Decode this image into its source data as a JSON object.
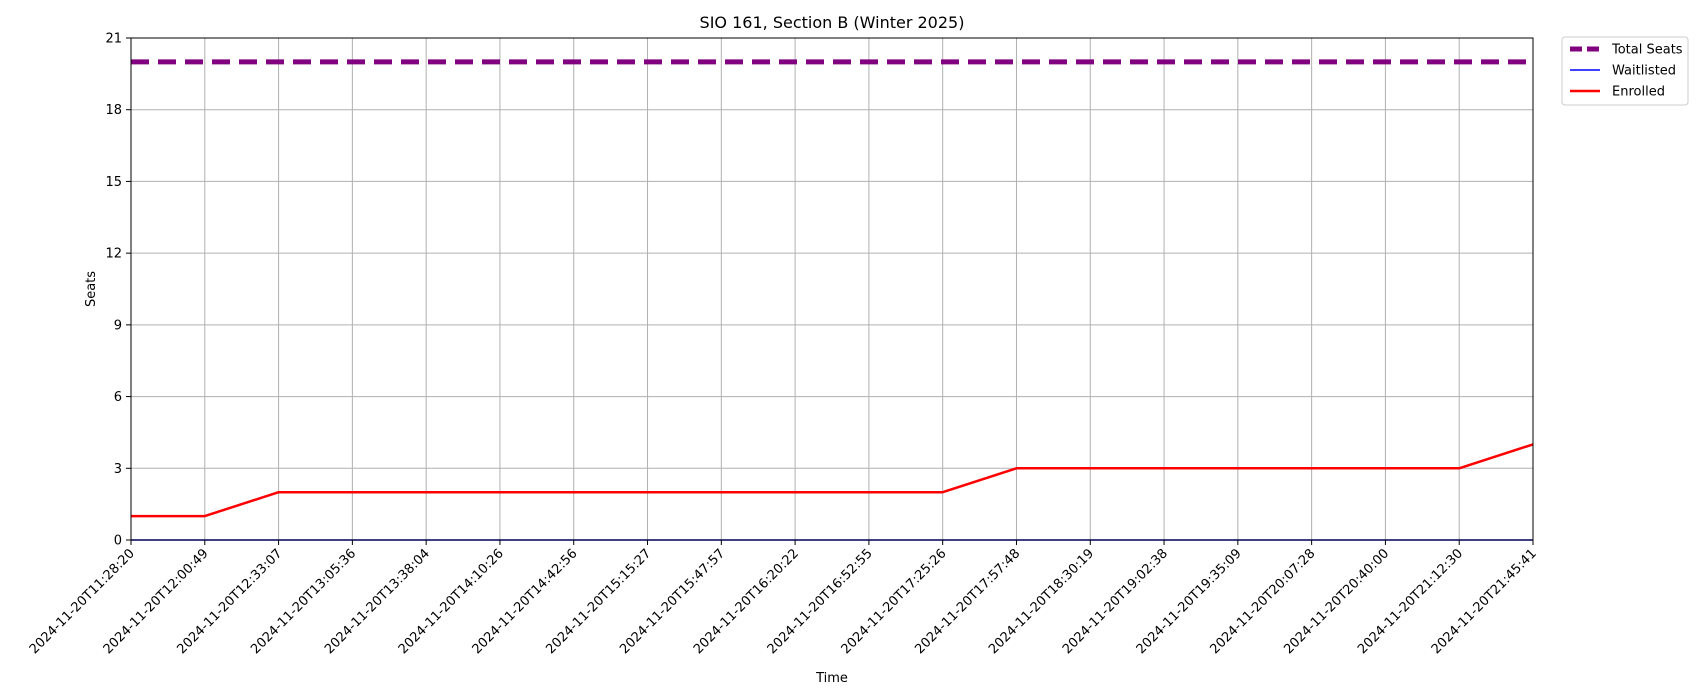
{
  "chart_data": {
    "type": "line",
    "title": "SIO 161, Section B (Winter 2025)",
    "xlabel": "Time",
    "ylabel": "Seats",
    "ylim": [
      0,
      21
    ],
    "yticks": [
      0,
      3,
      6,
      9,
      12,
      15,
      18,
      21
    ],
    "grid": true,
    "legend_position": "outside top-right",
    "x": [
      "2024-11-20T11:28:20",
      "2024-11-20T12:00:49",
      "2024-11-20T12:33:07",
      "2024-11-20T13:05:36",
      "2024-11-20T13:38:04",
      "2024-11-20T14:10:26",
      "2024-11-20T14:42:56",
      "2024-11-20T15:15:27",
      "2024-11-20T15:47:57",
      "2024-11-20T16:20:22",
      "2024-11-20T16:52:55",
      "2024-11-20T17:25:26",
      "2024-11-20T17:57:48",
      "2024-11-20T18:30:19",
      "2024-11-20T19:02:38",
      "2024-11-20T19:35:09",
      "2024-11-20T20:07:28",
      "2024-11-20T20:40:00",
      "2024-11-20T21:12:30",
      "2024-11-20T21:45:41"
    ],
    "series": [
      {
        "name": "Total Seats",
        "color": "#800080",
        "style": "dashed",
        "values": [
          20,
          20,
          20,
          20,
          20,
          20,
          20,
          20,
          20,
          20,
          20,
          20,
          20,
          20,
          20,
          20,
          20,
          20,
          20,
          20
        ]
      },
      {
        "name": "Waitlisted",
        "color": "#0000ff",
        "style": "solid",
        "values": [
          0,
          0,
          0,
          0,
          0,
          0,
          0,
          0,
          0,
          0,
          0,
          0,
          0,
          0,
          0,
          0,
          0,
          0,
          0,
          0
        ]
      },
      {
        "name": "Enrolled",
        "color": "#ff0000",
        "style": "solid",
        "values": [
          1,
          1,
          2,
          2,
          2,
          2,
          2,
          2,
          2,
          2,
          2,
          2,
          3,
          3,
          3,
          3,
          3,
          3,
          3,
          4
        ]
      }
    ]
  }
}
